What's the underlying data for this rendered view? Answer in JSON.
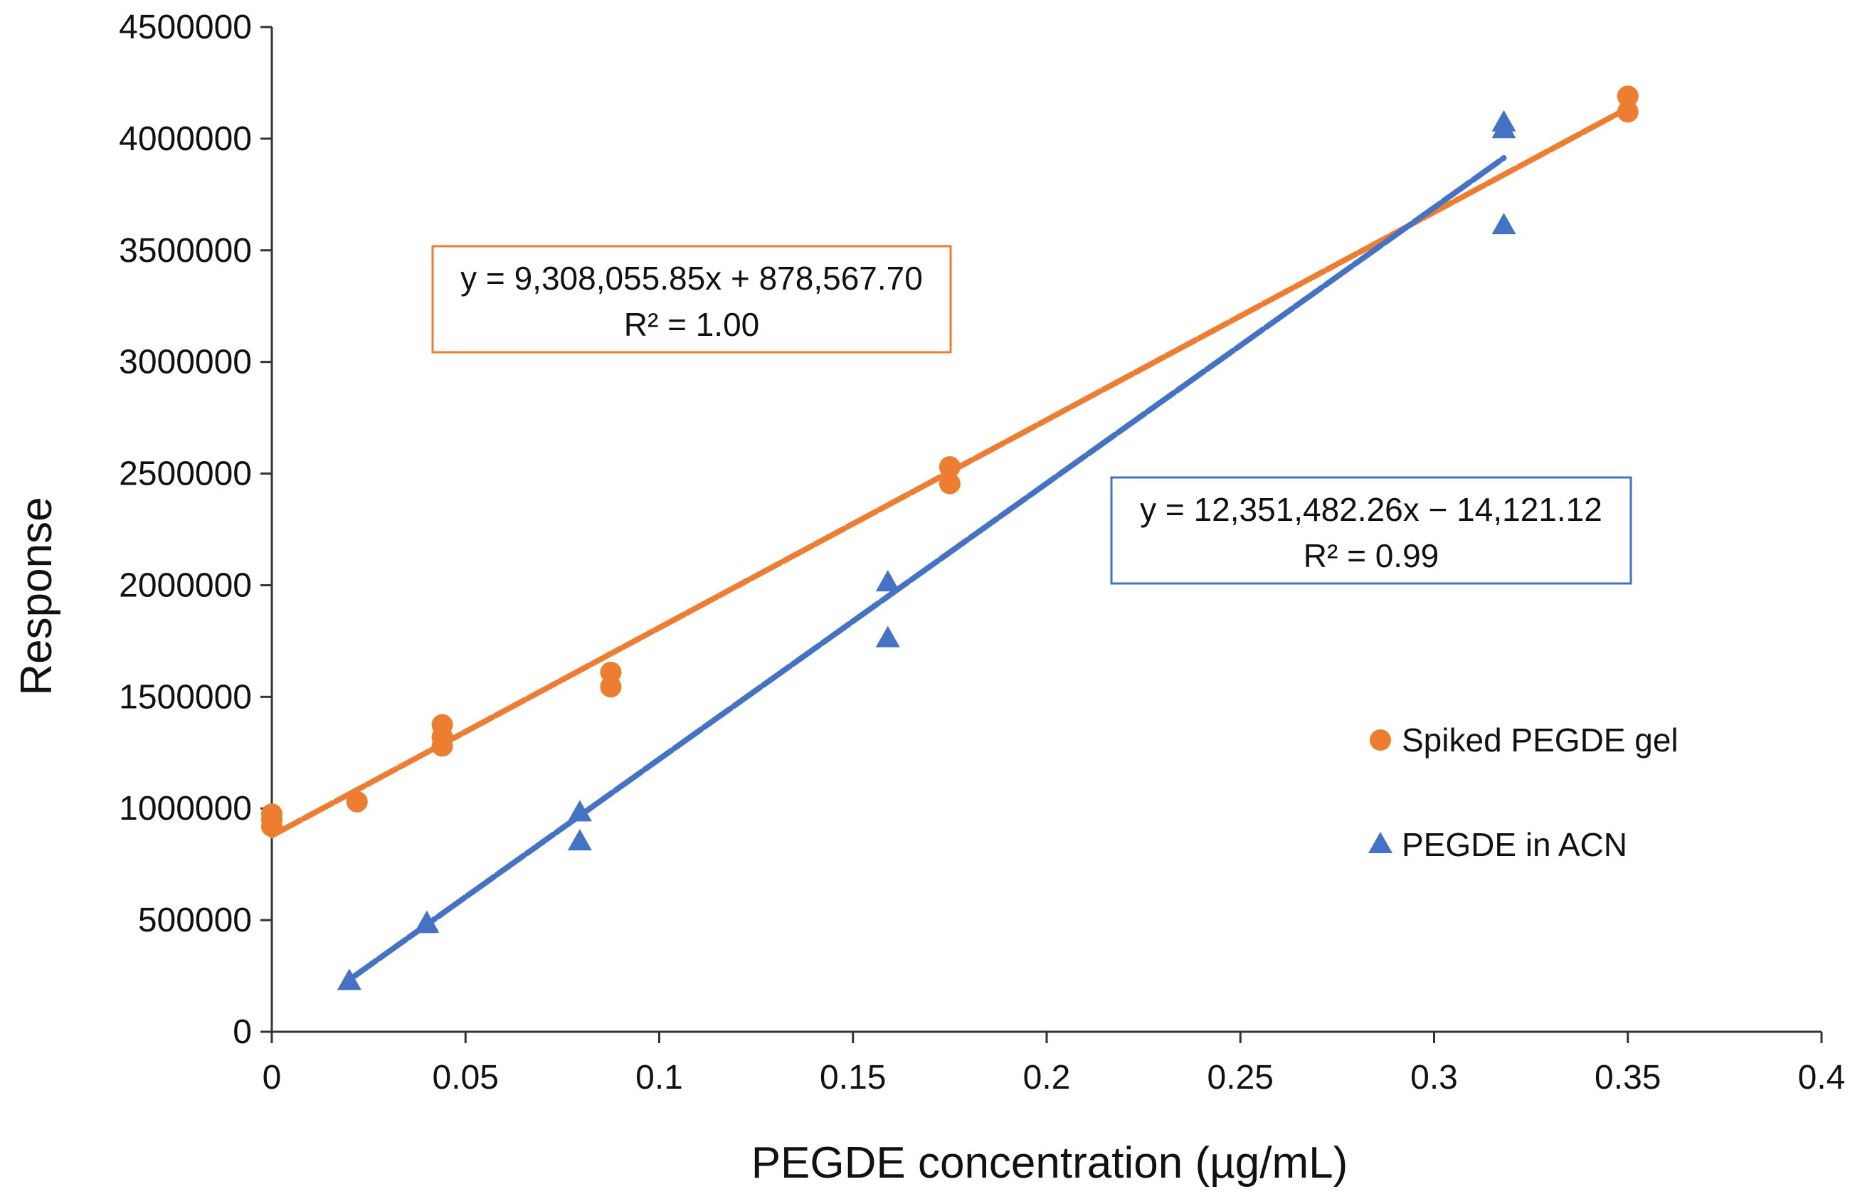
{
  "chart_data": {
    "type": "scatter",
    "xlabel": "PEGDE concentration (µg/mL)",
    "ylabel": "Response",
    "xlim": [
      0,
      0.4
    ],
    "ylim": [
      0,
      4500000
    ],
    "x_ticks": [
      "0",
      "0.05",
      "0.1",
      "0.15",
      "0.2",
      "0.25",
      "0.3",
      "0.35",
      "0.4"
    ],
    "y_ticks": [
      "0",
      "500000",
      "1000000",
      "1500000",
      "2000000",
      "2500000",
      "3000000",
      "3500000",
      "4000000",
      "4500000"
    ],
    "grid": false,
    "legend_position": "right",
    "series": [
      {
        "name": "Spiked PEGDE gel",
        "marker": "circle",
        "color": "#ED7D31",
        "points": [
          [
            0,
            920000
          ],
          [
            0,
            950000
          ],
          [
            0,
            975000
          ],
          [
            0.022,
            1030000
          ],
          [
            0.044,
            1280000
          ],
          [
            0.044,
            1320000
          ],
          [
            0.044,
            1375000
          ],
          [
            0.0875,
            1545000
          ],
          [
            0.0875,
            1610000
          ],
          [
            0.175,
            2455000
          ],
          [
            0.175,
            2530000
          ],
          [
            0.35,
            4120000
          ],
          [
            0.35,
            4190000
          ]
        ],
        "trendline": {
          "x_range": [
            0,
            0.35
          ],
          "equation": "y = 9,308,055.85x + 878,567.70",
          "r_squared": "R² = 1.00"
        }
      },
      {
        "name": "PEGDE in ACN",
        "marker": "triangle",
        "color": "#4472C4",
        "points": [
          [
            0.02,
            235000
          ],
          [
            0.04,
            490000
          ],
          [
            0.04,
            495000
          ],
          [
            0.0795,
            860000
          ],
          [
            0.0795,
            990000
          ],
          [
            0.159,
            1770000
          ],
          [
            0.159,
            2020000
          ],
          [
            0.318,
            3620000
          ],
          [
            0.318,
            4050000
          ],
          [
            0.318,
            4080000
          ]
        ],
        "trendline": {
          "x_range": [
            0.02,
            0.318
          ],
          "equation": "y = 12,351,482.26x − 14,121.12",
          "r_squared": "R² = 0.99"
        }
      }
    ]
  }
}
